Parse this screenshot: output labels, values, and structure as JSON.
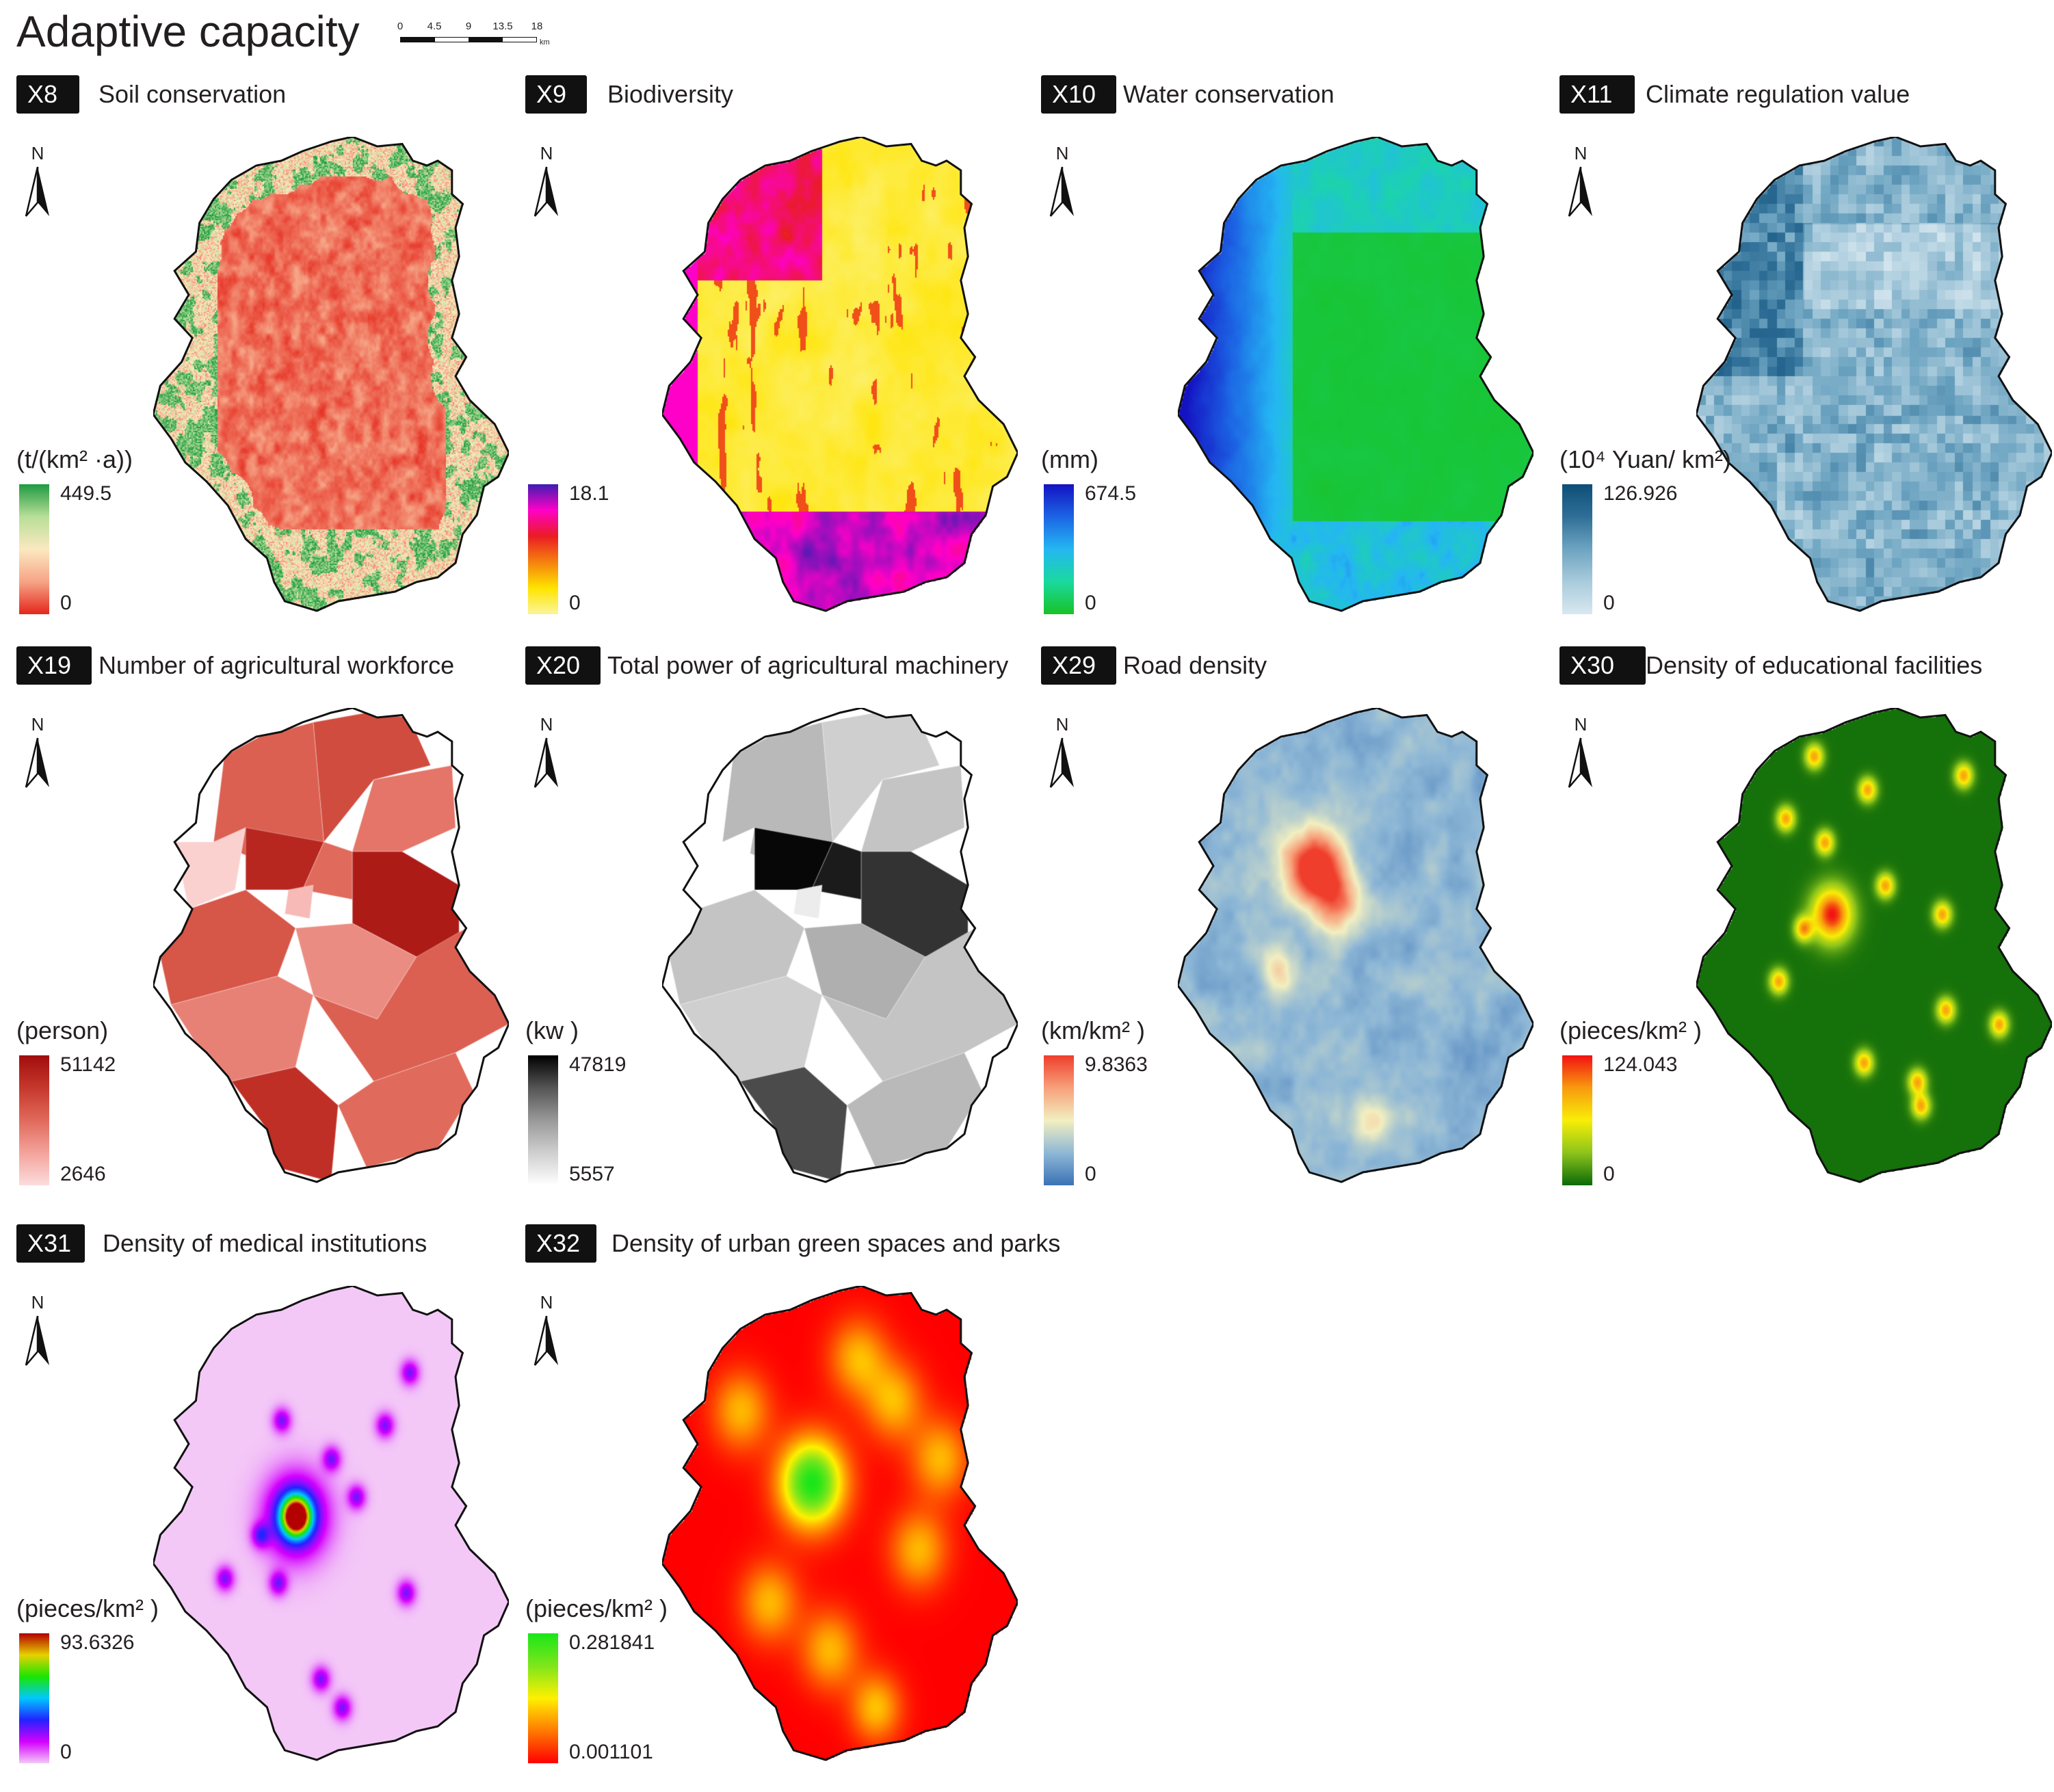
{
  "page": {
    "title": "Adaptive capacity",
    "scale_bar": {
      "ticks": [
        "0",
        "4.5",
        "9",
        "13.5",
        "18"
      ],
      "unit": "km"
    },
    "north_label": "N"
  },
  "panels": [
    {
      "code": "X8",
      "title": "Soil conservation",
      "unit": "(t/(km² ·a))",
      "max": "449.5",
      "min": "0",
      "ramp": [
        "#e4261b",
        "#f6a486",
        "#fbe9c0",
        "#b8df98",
        "#1f9a42"
      ],
      "pattern": "soil"
    },
    {
      "code": "X9",
      "title": "Biodiversity",
      "unit": "",
      "max": "18.1",
      "min": "0",
      "ramp": [
        "#fbf59a",
        "#ffe400",
        "#f5820e",
        "#ea1c24",
        "#ff00c8",
        "#3d1db1"
      ],
      "pattern": "bio"
    },
    {
      "code": "X10",
      "title": "Water conservation",
      "unit": "(mm)",
      "max": "674.5",
      "min": "0",
      "ramp": [
        "#18c226",
        "#1ad99e",
        "#24b7f2",
        "#1c64e4",
        "#1412c2"
      ],
      "pattern": "water"
    },
    {
      "code": "X11",
      "title": "Climate regulation value",
      "unit": "(10⁴ Yuan/ km²)",
      "max": "126.926",
      "min": "0",
      "ramp": [
        "#d8e8f0",
        "#a9cbdc",
        "#6da4c1",
        "#2f6f97",
        "#0d4e78"
      ],
      "pattern": "climate"
    },
    {
      "code": "X19",
      "title": "Number of agricultural workforce",
      "unit": "(person)",
      "max": "51142",
      "min": "2646",
      "ramp": [
        "#fcdcdc",
        "#f3a39c",
        "#e06a5b",
        "#c6382c",
        "#a10d0d"
      ],
      "pattern": "work"
    },
    {
      "code": "X20",
      "title": "Total power of agricultural machinery",
      "unit": "(kw )",
      "max": "47819",
      "min": "5557",
      "ramp": [
        "#ffffff",
        "#cfcfcf",
        "#999999",
        "#555555",
        "#000000"
      ],
      "pattern": "mach"
    },
    {
      "code": "X29",
      "title": "Road density",
      "unit": "(km/km² )",
      "max": "9.8363",
      "min": "0",
      "ramp": [
        "#3a72b6",
        "#8fb8d6",
        "#f2efc0",
        "#f7a07a",
        "#ef3e2c"
      ],
      "pattern": "road"
    },
    {
      "code": "X30",
      "title": "Density of educational facilities",
      "unit": "(pieces/km² )",
      "max": "124.043",
      "min": "0",
      "ramp": [
        "#0b6a08",
        "#8dc41b",
        "#f8ee06",
        "#f89a0e",
        "#f21212"
      ],
      "pattern": "edu"
    },
    {
      "code": "X31",
      "title": "Density of medical institutions",
      "unit": "(pieces/km² )",
      "max": "93.6326",
      "min": "0",
      "ramp": [
        "#f3c8f7",
        "#d400ff",
        "#2222ff",
        "#00c8ff",
        "#19e600",
        "#e6d100",
        "#b40000"
      ],
      "pattern": "med"
    },
    {
      "code": "X32",
      "title": "Density of urban green spaces and parks",
      "unit": "(pieces/km² )",
      "max": "0.281841",
      "min": "0.001101",
      "ramp": [
        "#ff0000",
        "#ff7a00",
        "#fff000",
        "#7ee61b",
        "#19e619"
      ],
      "pattern": "green"
    }
  ]
}
